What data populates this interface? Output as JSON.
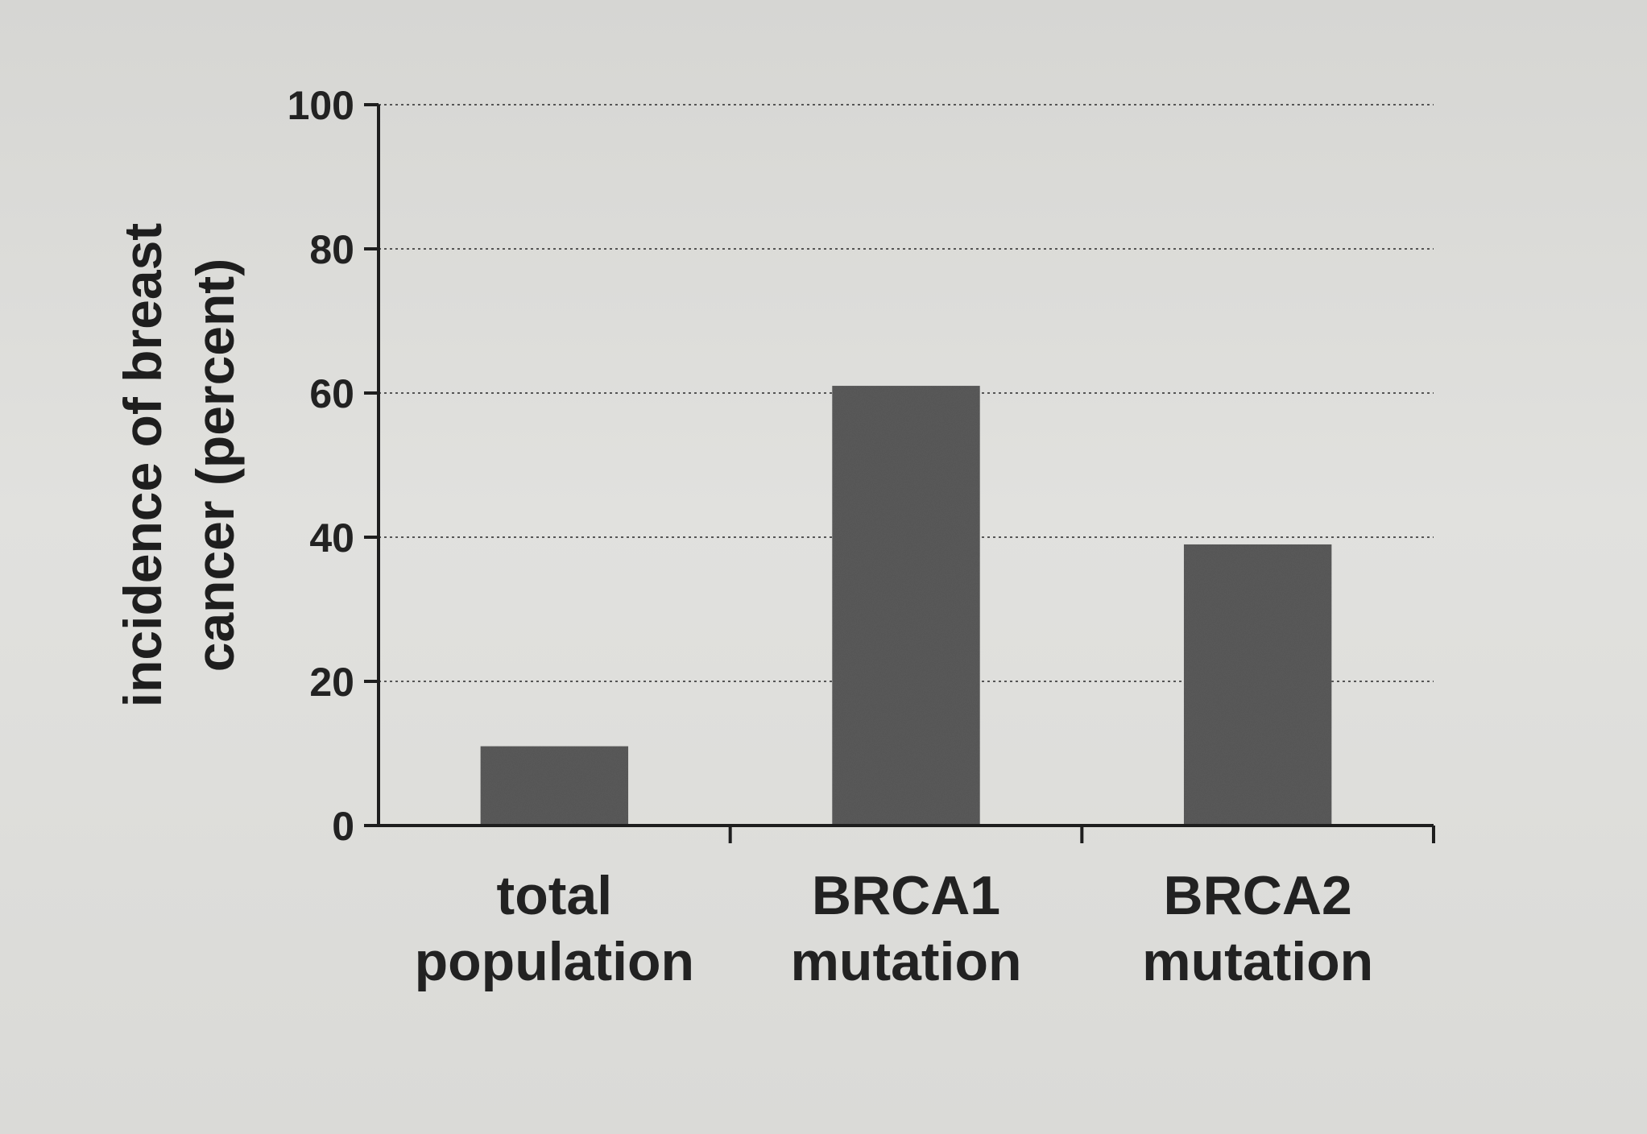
{
  "chart_data": {
    "type": "bar",
    "categories": [
      [
        "total",
        "population"
      ],
      [
        "BRCA1",
        "mutation"
      ],
      [
        "BRCA2",
        "mutation"
      ]
    ],
    "values": [
      11,
      61,
      39
    ],
    "ylabel": [
      "incidence of breast",
      "cancer (percent)"
    ],
    "ylim": [
      0,
      100
    ],
    "yticks": [
      0,
      20,
      40,
      60,
      80,
      100
    ],
    "grid": true,
    "colors": {
      "bar": "#5a5a5a",
      "axis": "#1e1e1e",
      "grid": "#555555",
      "background": "#dcdcda"
    }
  }
}
